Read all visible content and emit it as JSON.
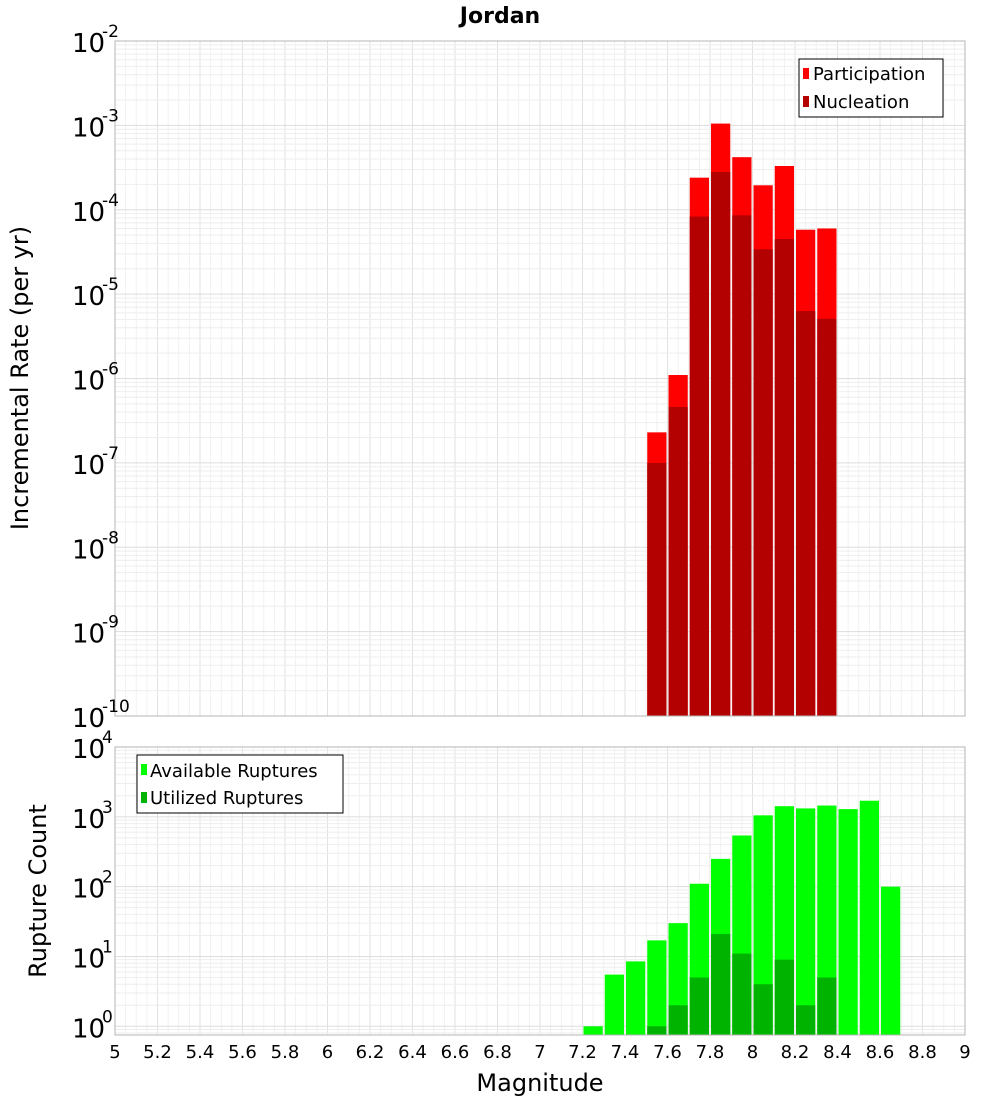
{
  "chart_data": [
    {
      "type": "bar",
      "title": "Jordan",
      "ylabel": "Incremental Rate (per yr)",
      "xlabel": "",
      "y_scale": "log",
      "ylim": [
        1e-10,
        0.01
      ],
      "y_exponents": [
        -10,
        -9,
        -8,
        -7,
        -6,
        -5,
        -4,
        -3,
        -2
      ],
      "xlim": [
        5,
        9
      ],
      "legend_position": "top-right",
      "grid": true,
      "series": [
        {
          "name": "Participation",
          "color": "#ff0000",
          "x": [
            7.55,
            7.65,
            7.75,
            7.85,
            7.95,
            8.05,
            8.15,
            8.25,
            8.35
          ],
          "values": [
            2.3e-07,
            1.1e-06,
            0.00024,
            0.00105,
            0.00042,
            0.000195,
            0.00033,
            5.8e-05,
            6e-05
          ]
        },
        {
          "name": "Nucleation",
          "color": "#b30000",
          "x": [
            7.55,
            7.65,
            7.75,
            7.85,
            7.95,
            8.05,
            8.15,
            8.25,
            8.35
          ],
          "values": [
            1e-07,
            4.6e-07,
            8.3e-05,
            0.00028,
            8.6e-05,
            3.4e-05,
            4.5e-05,
            6.3e-06,
            5.1e-06
          ]
        }
      ]
    },
    {
      "type": "bar",
      "title": "",
      "ylabel": "Rupture Count",
      "xlabel": "Magnitude",
      "y_scale": "log",
      "ylim": [
        0.75,
        10000
      ],
      "y_exponents": [
        0,
        1,
        2,
        3,
        4
      ],
      "xlim": [
        5,
        9
      ],
      "x_ticks": [
        "5",
        "5.2",
        "5.4",
        "5.6",
        "5.8",
        "6",
        "6.2",
        "6.4",
        "6.6",
        "6.8",
        "7",
        "7.2",
        "7.4",
        "7.6",
        "7.8",
        "8",
        "8.2",
        "8.4",
        "8.6",
        "8.8",
        "9"
      ],
      "legend_position": "top-left",
      "grid": true,
      "series": [
        {
          "name": "Available Ruptures",
          "color": "#00ff00",
          "x": [
            7.25,
            7.35,
            7.45,
            7.55,
            7.65,
            7.75,
            7.85,
            7.95,
            8.05,
            8.15,
            8.25,
            8.35,
            8.45,
            8.55,
            8.65
          ],
          "values": [
            1,
            5.5,
            8.5,
            17,
            30,
            110,
            250,
            540,
            1050,
            1420,
            1320,
            1450,
            1290,
            1700,
            100
          ]
        },
        {
          "name": "Utilized Ruptures",
          "color": "#00b300",
          "x": [
            7.55,
            7.65,
            7.75,
            7.85,
            7.95,
            8.05,
            8.15,
            8.25,
            8.35
          ],
          "values": [
            1,
            2,
            5,
            21,
            11,
            4,
            9,
            2,
            5
          ]
        }
      ]
    }
  ]
}
